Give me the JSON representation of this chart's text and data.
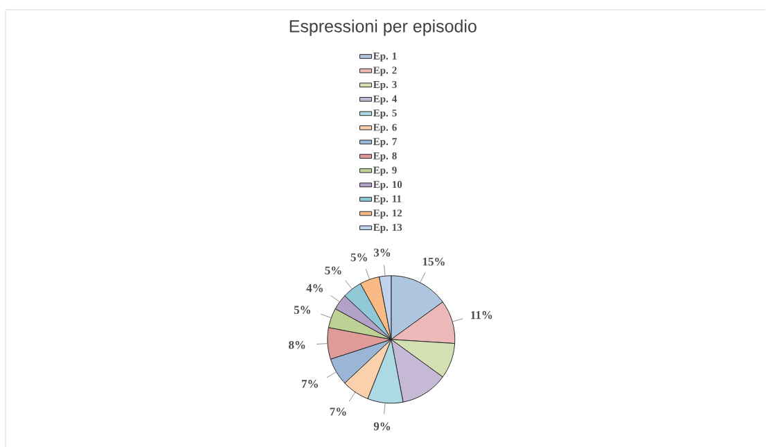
{
  "chart_data": {
    "type": "pie",
    "title": "Espressioni per episodio",
    "categories": [
      "Ep. 1",
      "Ep. 2",
      "Ep. 3",
      "Ep. 4",
      "Ep. 5",
      "Ep. 6",
      "Ep. 7",
      "Ep. 8",
      "Ep. 9",
      "Ep. 10",
      "Ep. 11",
      "Ep. 12",
      "Ep. 13"
    ],
    "values": [
      15,
      11,
      9,
      12,
      9,
      7,
      7,
      8,
      5,
      4,
      5,
      5,
      3
    ],
    "colors": [
      "#afc6e1",
      "#ecb8b8",
      "#d2e0b4",
      "#c6b9d5",
      "#add9e5",
      "#fbd0ac",
      "#9bb5d7",
      "#df9b9a",
      "#bed194",
      "#b2a2c8",
      "#90c8d7",
      "#f9ba85",
      "#bfd3ee"
    ],
    "value_labels": [
      "15%",
      "11%",
      null,
      null,
      "9%",
      "7%",
      "7%",
      "8%",
      "5%",
      "4%",
      "5%",
      "5%",
      "3%"
    ],
    "legend": "top"
  }
}
